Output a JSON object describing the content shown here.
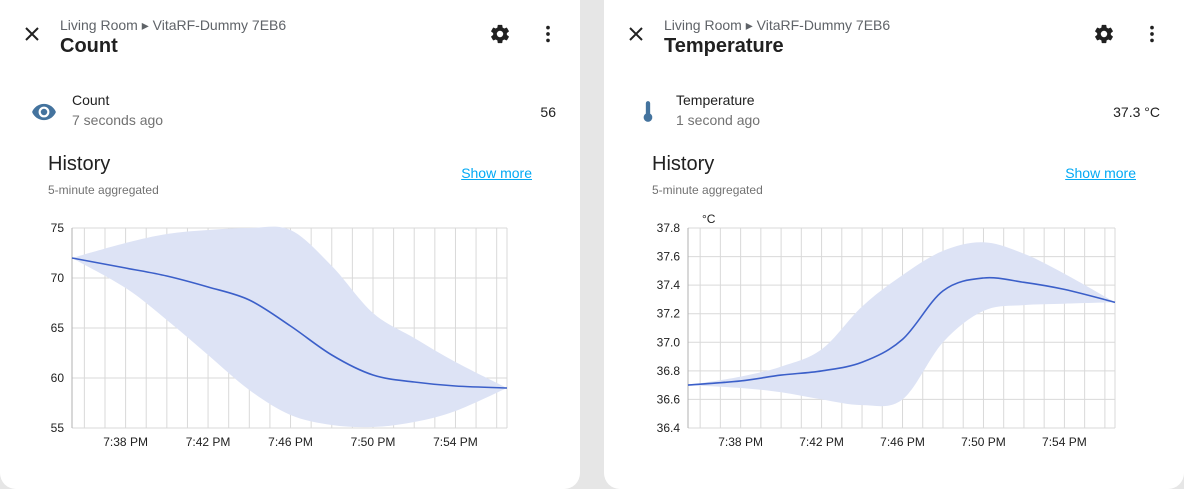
{
  "colors": {
    "line": "#3b5fc9",
    "band": "#dde3f5",
    "grid": "#d9d9d9",
    "link": "#03a9f4",
    "icon": "#44739e"
  },
  "dialogs": [
    {
      "breadcrumb": "Living Room ▸ VitaRF-Dummy 7EB6",
      "title": "Count",
      "entity": {
        "name": "Count",
        "time": "7 seconds ago",
        "value": "56",
        "icon": "eye-icon"
      },
      "history": {
        "title": "History",
        "subtitle": "5-minute aggregated",
        "show_more": "Show more"
      }
    },
    {
      "breadcrumb": "Living Room ▸ VitaRF-Dummy 7EB6",
      "title": "Temperature",
      "entity": {
        "name": "Temperature",
        "time": "1 second ago",
        "value": "37.3 °C",
        "icon": "thermometer-icon"
      },
      "history": {
        "title": "History",
        "subtitle": "5-minute aggregated",
        "show_more": "Show more"
      }
    }
  ],
  "chart_data": [
    {
      "type": "line",
      "title": "",
      "xlabel": "",
      "ylabel": "",
      "x_ticks": [
        "7:38 PM",
        "7:42 PM",
        "7:46 PM",
        "7:50 PM",
        "7:54 PM"
      ],
      "x_tick_minutes": [
        38,
        42,
        46,
        50,
        54
      ],
      "xlim": [
        35.4,
        56.5
      ],
      "ylim": [
        55,
        75
      ],
      "y_ticks": [
        75,
        70,
        65,
        60,
        55
      ],
      "y_tick_labels": [
        "75",
        "70",
        "65",
        "60",
        "55"
      ],
      "x": [
        35.4,
        38,
        40,
        42,
        44,
        46,
        48,
        50,
        52,
        54,
        56.5
      ],
      "series": [
        {
          "values": [
            72,
            71,
            70.2,
            69.1,
            67.8,
            65.2,
            62.3,
            60.3,
            59.6,
            59.2,
            59
          ]
        }
      ],
      "band": {
        "upper": [
          72,
          73.5,
          74.4,
          74.8,
          75,
          74.8,
          71.2,
          66.5,
          64,
          61.6,
          59
        ],
        "lower": [
          72,
          69,
          65.8,
          62.3,
          58.8,
          56.3,
          55.3,
          55.1,
          55.6,
          56.7,
          59
        ]
      },
      "grid": true
    },
    {
      "type": "line",
      "title": "",
      "xlabel": "",
      "ylabel": "°C",
      "x_ticks": [
        "7:38 PM",
        "7:42 PM",
        "7:46 PM",
        "7:50 PM",
        "7:54 PM"
      ],
      "x_tick_minutes": [
        38,
        42,
        46,
        50,
        54
      ],
      "xlim": [
        35.4,
        56.5
      ],
      "ylim": [
        36.4,
        37.8
      ],
      "y_ticks": [
        37.8,
        37.6,
        37.4,
        37.2,
        37.0,
        36.8,
        36.6,
        36.4
      ],
      "y_tick_labels": [
        "37.8",
        "37.6",
        "37.4",
        "37.2",
        "37.0",
        "36.8",
        "36.6",
        "36.4"
      ],
      "x": [
        35.4,
        38,
        40,
        42,
        44,
        46,
        48,
        50,
        52,
        54,
        56.5
      ],
      "series": [
        {
          "values": [
            36.7,
            36.73,
            36.77,
            36.8,
            36.86,
            37.02,
            37.36,
            37.45,
            37.42,
            37.37,
            37.28
          ]
        }
      ],
      "band": {
        "upper": [
          36.7,
          36.76,
          36.83,
          36.95,
          37.25,
          37.47,
          37.64,
          37.7,
          37.62,
          37.48,
          37.28
        ],
        "lower": [
          36.7,
          36.68,
          36.65,
          36.6,
          36.56,
          36.6,
          37.0,
          37.22,
          37.26,
          37.27,
          37.28
        ]
      },
      "grid": true
    }
  ]
}
